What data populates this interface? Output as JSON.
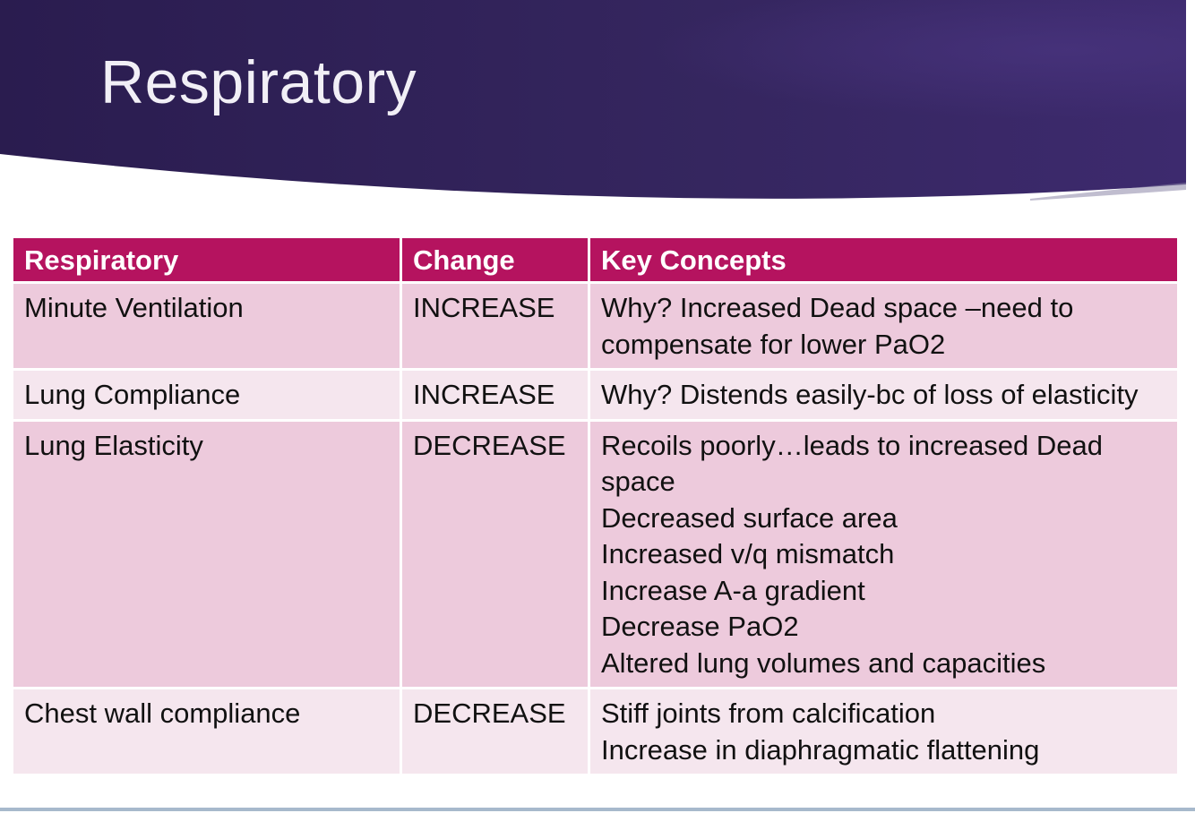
{
  "slide": {
    "title": "Respiratory",
    "colors": {
      "banner_dark": "#2a1c4f",
      "banner_light": "#3d2a6e",
      "header_row": "#b5135f",
      "row_odd": "#edcadc",
      "row_even": "#f5e6ee",
      "footer_line": "#a7b9cc"
    }
  },
  "table": {
    "headers": [
      "Respiratory",
      "Change",
      "Key Concepts"
    ],
    "rows": [
      {
        "item": "Minute Ventilation",
        "change": "INCREASE",
        "concepts": [
          "Why? Increased Dead space –need to compensate for lower PaO2"
        ]
      },
      {
        "item": "Lung Compliance",
        "change": "INCREASE",
        "concepts": [
          "Why? Distends easily-bc of loss of elasticity"
        ]
      },
      {
        "item": "Lung Elasticity",
        "change": "DECREASE",
        "concepts": [
          "Recoils poorly…leads to increased Dead space",
          "Decreased surface area",
          "Increased v/q mismatch",
          "Increase A-a gradient",
          "Decrease PaO2",
          "Altered lung volumes and capacities"
        ]
      },
      {
        "item": "Chest wall compliance",
        "change": "DECREASE",
        "concepts": [
          "Stiff joints from calcification",
          "Increase in diaphragmatic flattening"
        ]
      }
    ]
  }
}
